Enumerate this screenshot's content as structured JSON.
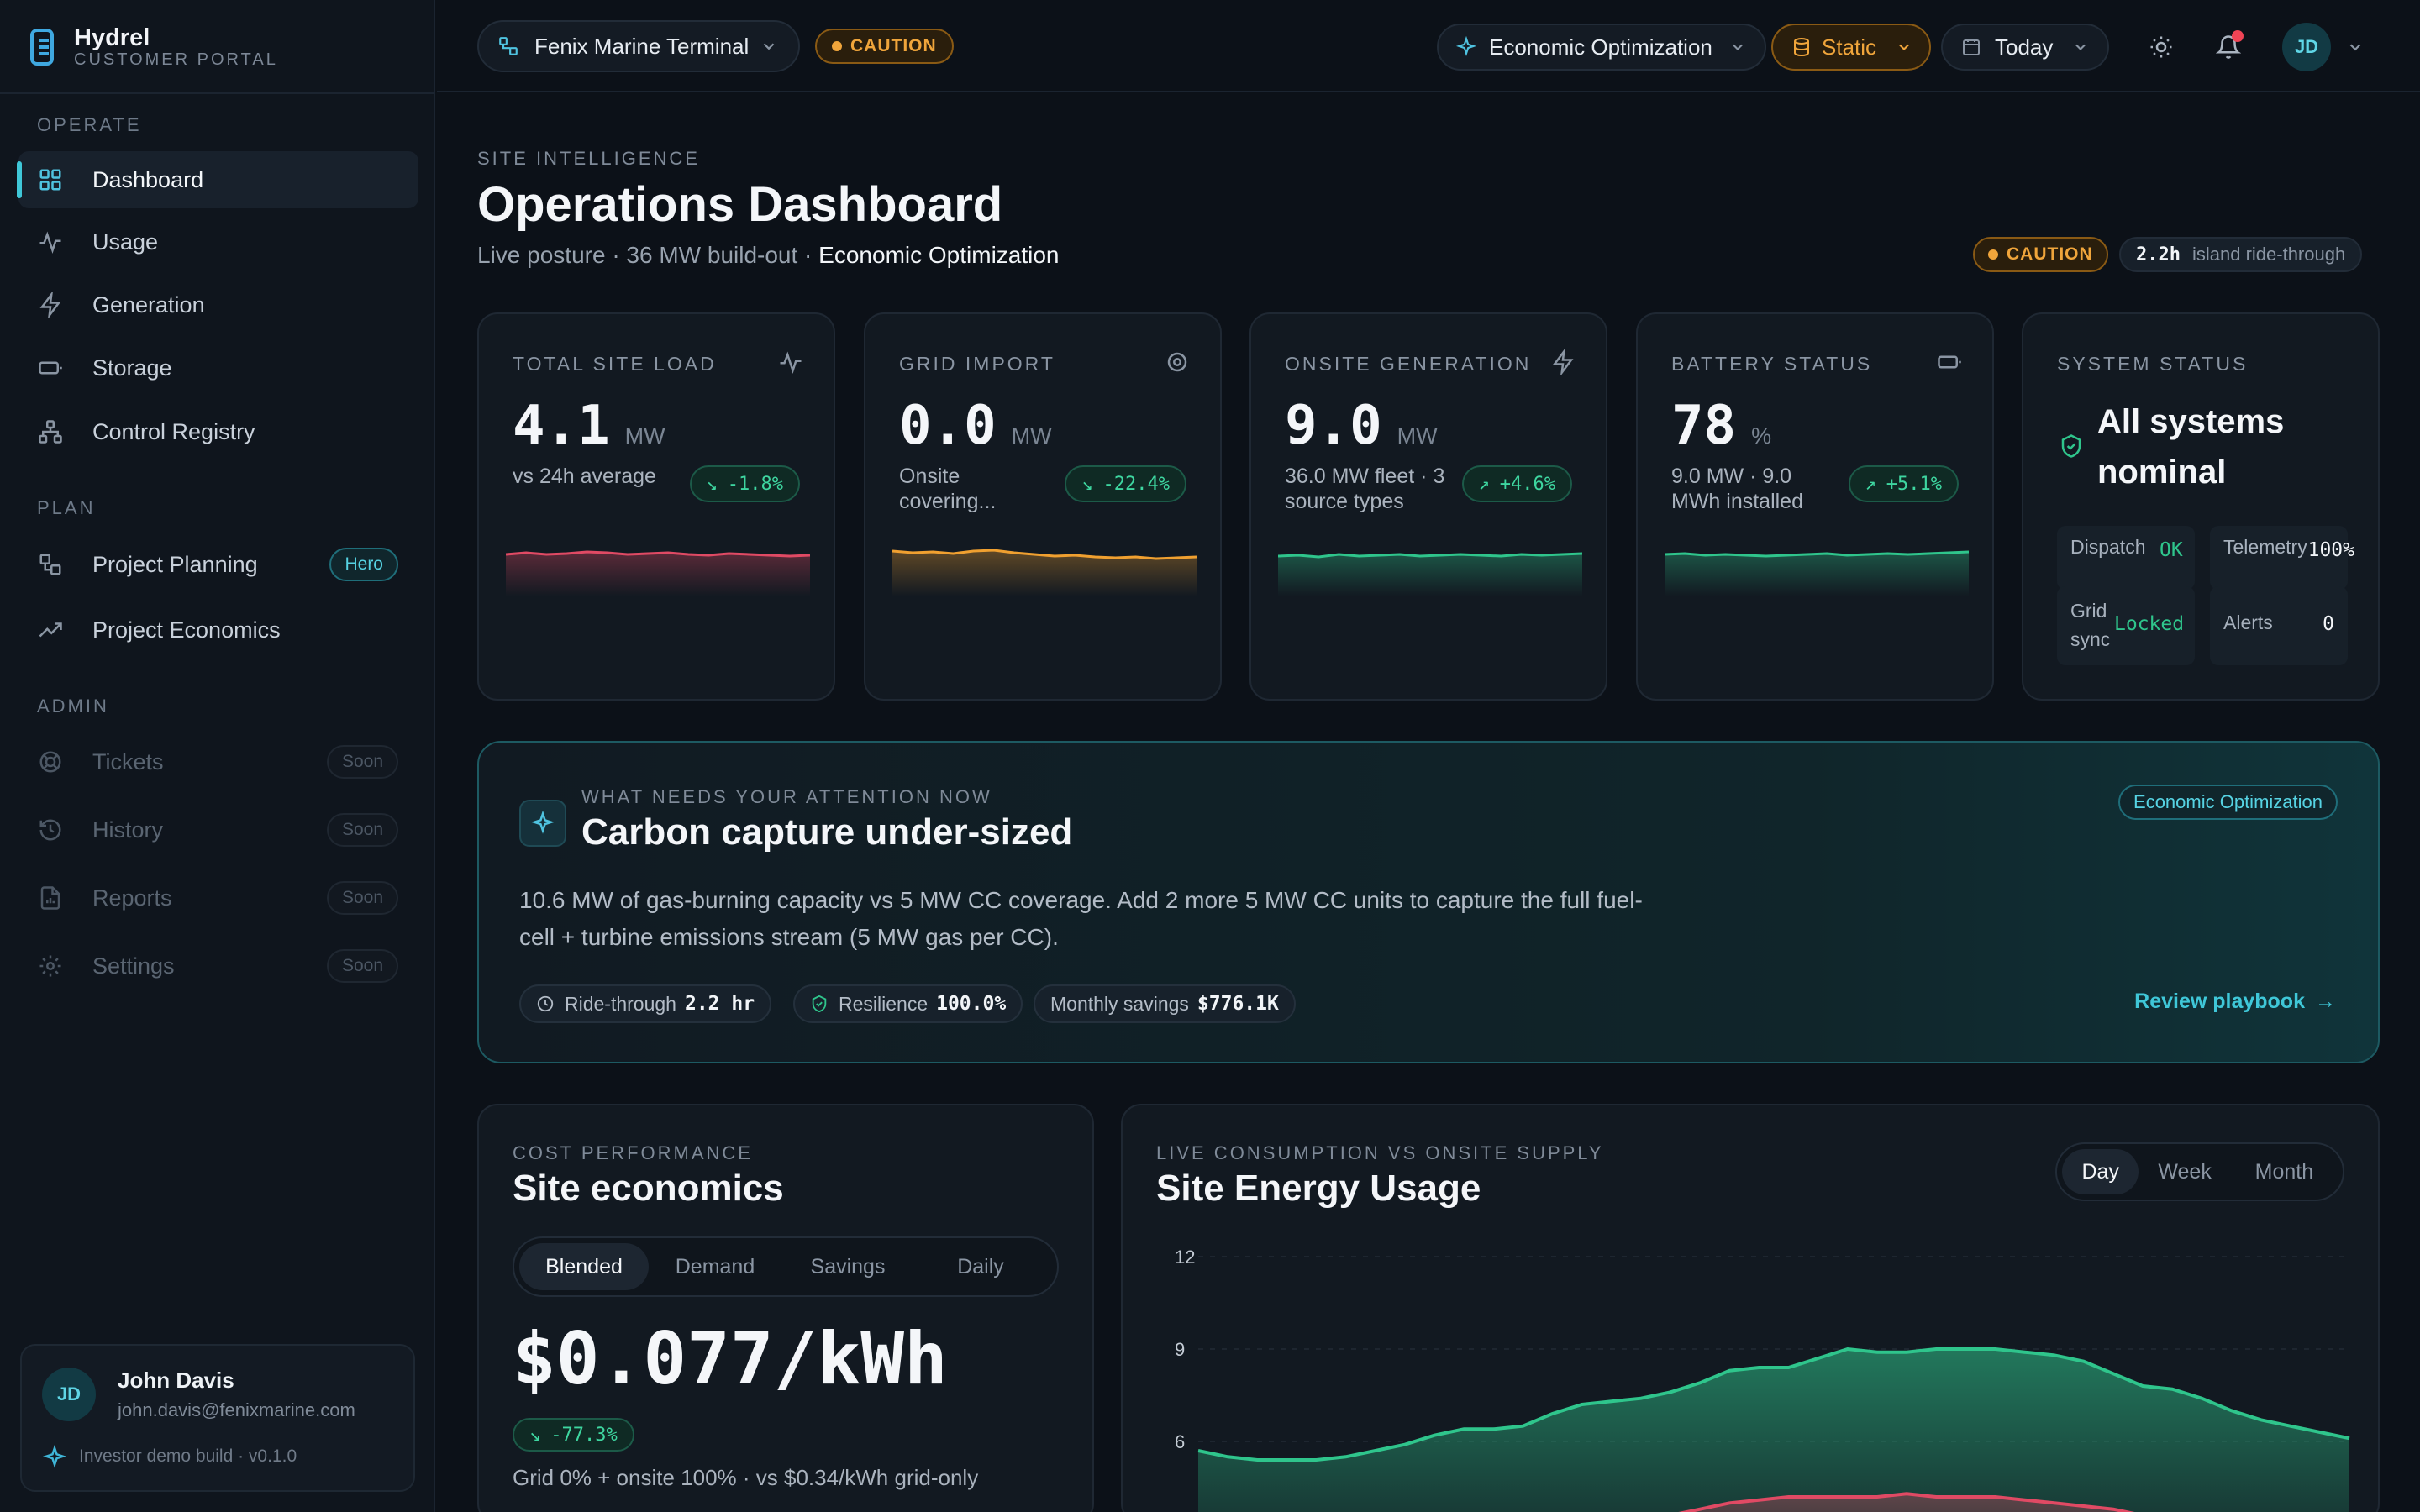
{
  "brand": {
    "name": "Hydrel",
    "subtitle": "CUSTOMER PORTAL"
  },
  "sidebar": {
    "sections": [
      "OPERATE",
      "PLAN",
      "ADMIN"
    ],
    "operate": [
      {
        "label": "Dashboard",
        "icon": "grid-icon",
        "active": true
      },
      {
        "label": "Usage",
        "icon": "activity-icon"
      },
      {
        "label": "Generation",
        "icon": "bolt-icon"
      },
      {
        "label": "Storage",
        "icon": "battery-icon"
      },
      {
        "label": "Control Registry",
        "icon": "network-icon"
      }
    ],
    "plan": [
      {
        "label": "Project Planning",
        "icon": "workflow-icon",
        "tag": "Hero"
      },
      {
        "label": "Project Economics",
        "icon": "trend-up-icon"
      }
    ],
    "admin": [
      {
        "label": "Tickets",
        "icon": "lifebuoy-icon",
        "tag": "Soon"
      },
      {
        "label": "History",
        "icon": "history-icon",
        "tag": "Soon"
      },
      {
        "label": "Reports",
        "icon": "report-icon",
        "tag": "Soon"
      },
      {
        "label": "Settings",
        "icon": "gear-icon",
        "tag": "Soon"
      }
    ],
    "user": {
      "initials": "JD",
      "name": "John Davis",
      "email": "john.davis@fenixmarine.com",
      "build": "Investor demo build · v0.1.0"
    }
  },
  "topbar": {
    "site": "Fenix Marine Terminal",
    "status": "CAUTION",
    "mode": "Economic Optimization",
    "data_mode": "Static",
    "range": "Today",
    "user_initials": "JD"
  },
  "header": {
    "eyebrow": "SITE INTELLIGENCE",
    "title": "Operations Dashboard",
    "subtitle": "Live posture · 36 MW build-out · ",
    "mode": "Economic Optimization",
    "status": "CAUTION",
    "ride_value": "2.2h",
    "ride_label": "island ride-through"
  },
  "kpis": [
    {
      "label": "TOTAL SITE LOAD",
      "icon": "activity-icon",
      "value": "4.1",
      "unit": "MW",
      "sub": "vs 24h average",
      "delta": "-1.8%",
      "trend": "down",
      "color": "#e04a64"
    },
    {
      "label": "GRID IMPORT",
      "icon": "target-icon",
      "value": "0.0",
      "unit": "MW",
      "sub": "Onsite covering...",
      "delta": "-22.4%",
      "trend": "down",
      "color": "#f0a030"
    },
    {
      "label": "ONSITE GENERATION",
      "icon": "bolt-icon",
      "value": "9.0",
      "unit": "MW",
      "sub": "36.0 MW fleet · 3 source types",
      "delta": "+4.6%",
      "trend": "up",
      "color": "#2fc58c"
    },
    {
      "label": "BATTERY STATUS",
      "icon": "battery-icon",
      "value": "78",
      "unit": "%",
      "sub": "9.0 MW · 9.0 MWh installed",
      "delta": "+5.1%",
      "trend": "up",
      "color": "#2fc58c"
    }
  ],
  "system": {
    "label": "SYSTEM STATUS",
    "status": "All systems nominal",
    "tiles": [
      {
        "k": "Dispatch",
        "v": "OK"
      },
      {
        "k": "Telemetry",
        "v": "100%"
      },
      {
        "k": "Grid sync",
        "v": "Locked"
      },
      {
        "k": "Alerts",
        "v": "0"
      }
    ]
  },
  "attention": {
    "eyebrow": "WHAT NEEDS YOUR ATTENTION NOW",
    "title": "Carbon capture under-sized",
    "body": "10.6 MW of gas-burning capacity vs 5 MW CC coverage. Add 2 more 5 MW CC units to capture the full fuel-cell + turbine emissions stream (5 MW gas per CC).",
    "mode": "Economic Optimization",
    "chips": [
      {
        "k": "Ride-through",
        "v": "2.2 hr"
      },
      {
        "k": "Resilience",
        "v": "100.0%"
      },
      {
        "k": "Monthly savings",
        "v": "$776.1K"
      }
    ],
    "action": "Review playbook"
  },
  "economics": {
    "eyebrow": "COST PERFORMANCE",
    "title": "Site economics",
    "tabs": [
      "Blended",
      "Demand",
      "Savings",
      "Daily"
    ],
    "active_tab": "Blended",
    "value": "$0.077/kWh",
    "delta": "-77.3%",
    "note": "Grid 0% + onsite 100% · vs $0.34/kWh grid-only"
  },
  "energy": {
    "eyebrow": "LIVE CONSUMPTION VS ONSITE SUPPLY",
    "title": "Site Energy Usage",
    "tabs": [
      "Day",
      "Week",
      "Month"
    ],
    "active_tab": "Day"
  },
  "chart_data": {
    "type": "area",
    "title": "Site Energy Usage",
    "xlabel": "",
    "ylabel": "",
    "yticks": [
      12,
      9,
      6
    ],
    "ylim": [
      3,
      12
    ],
    "x": [
      0,
      1,
      2,
      3,
      4,
      5,
      6,
      7,
      8,
      9,
      10,
      11,
      12,
      13,
      14,
      15,
      16,
      17,
      18,
      19,
      20,
      21,
      22,
      23,
      24,
      25,
      26,
      27,
      28,
      29,
      30,
      31,
      32,
      33,
      34,
      35,
      36,
      37,
      38,
      39
    ],
    "series": [
      {
        "name": "",
        "color": "#2fc58c",
        "values": [
          5.7,
          5.5,
          5.4,
          5.4,
          5.4,
          5.5,
          5.7,
          5.9,
          6.2,
          6.4,
          6.4,
          6.5,
          6.9,
          7.2,
          7.3,
          7.4,
          7.6,
          7.9,
          8.3,
          8.4,
          8.4,
          8.7,
          9.0,
          8.9,
          8.9,
          9.0,
          9.0,
          9.0,
          8.9,
          8.8,
          8.6,
          8.2,
          7.8,
          7.7,
          7.4,
          7.0,
          6.7,
          6.5,
          6.3,
          6.1
        ]
      },
      {
        "name": "",
        "color": "#e04a64",
        "values": [
          2.6,
          2.6,
          2.6,
          2.6,
          2.6,
          2.7,
          2.7,
          2.8,
          2.9,
          3.0,
          3.0,
          3.1,
          3.2,
          3.3,
          3.4,
          3.5,
          3.6,
          3.8,
          4.0,
          4.1,
          4.2,
          4.2,
          4.2,
          4.2,
          4.3,
          4.2,
          4.2,
          4.2,
          4.1,
          4.0,
          3.9,
          3.8,
          3.6,
          3.4,
          3.2,
          3.1,
          3.0,
          2.9,
          2.8,
          2.7
        ]
      }
    ]
  }
}
